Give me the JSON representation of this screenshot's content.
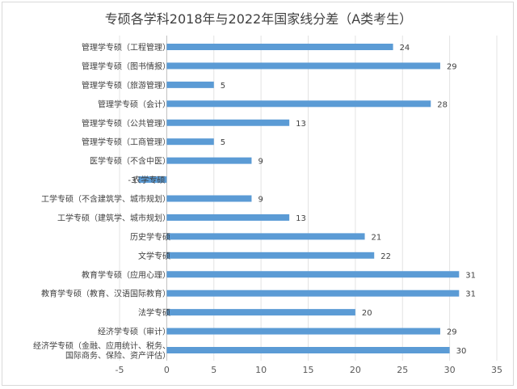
{
  "chart_data": {
    "type": "bar",
    "orientation": "horizontal",
    "title": "专硕各学科2018年与2022年国家线分差（A类考生）",
    "xlabel": "",
    "ylabel": "",
    "xlim": [
      -5,
      35
    ],
    "xticks": [
      -5,
      0,
      5,
      10,
      15,
      20,
      25,
      30,
      35
    ],
    "grid": true,
    "legend": "none",
    "bar_color": "#5b9bd5",
    "categories": [
      "管理学专硕（工程管理）",
      "管理学专硕（图书情报）",
      "管理学专硕（旅游管理）",
      "管理学专硕（会计）",
      "管理学专硕（公共管理）",
      "管理学专硕（工商管理）",
      "医学专硕（不含中医）",
      "农学专硕",
      "工学专硕（不含建筑学、城市规划）",
      "工学专硕（建筑学、城市规划）",
      "历史学专硕",
      "文学专硕",
      "教育学专硕（应用心理）",
      "教育学专硕（教育、汉语国际教育）",
      "法学专硕",
      "经济学专硕（审计）",
      "经济学专硕（金融、应用统计、税务、国际商务、保险、资产评估）"
    ],
    "category_lines": [
      [
        "管理学专硕（工程管理）"
      ],
      [
        "管理学专硕（图书情报）"
      ],
      [
        "管理学专硕（旅游管理）"
      ],
      [
        "管理学专硕（会计）"
      ],
      [
        "管理学专硕（公共管理）"
      ],
      [
        "管理学专硕（工商管理）"
      ],
      [
        "医学专硕（不含中医）"
      ],
      [
        "农学专硕"
      ],
      [
        "工学专硕（不含建筑学、城市规划）"
      ],
      [
        "工学专硕（建筑学、城市规划）"
      ],
      [
        "历史学专硕"
      ],
      [
        "文学专硕"
      ],
      [
        "教育学专硕（应用心理）"
      ],
      [
        "教育学专硕（教育、汉语国际教育）"
      ],
      [
        "法学专硕"
      ],
      [
        "经济学专硕（审计）"
      ],
      [
        "经济学专硕（金融、应用统计、税务、",
        "国际商务、保险、资产评估）"
      ]
    ],
    "values": [
      24,
      29,
      5,
      28,
      13,
      5,
      9,
      -3,
      9,
      13,
      21,
      22,
      31,
      31,
      20,
      29,
      30
    ]
  }
}
